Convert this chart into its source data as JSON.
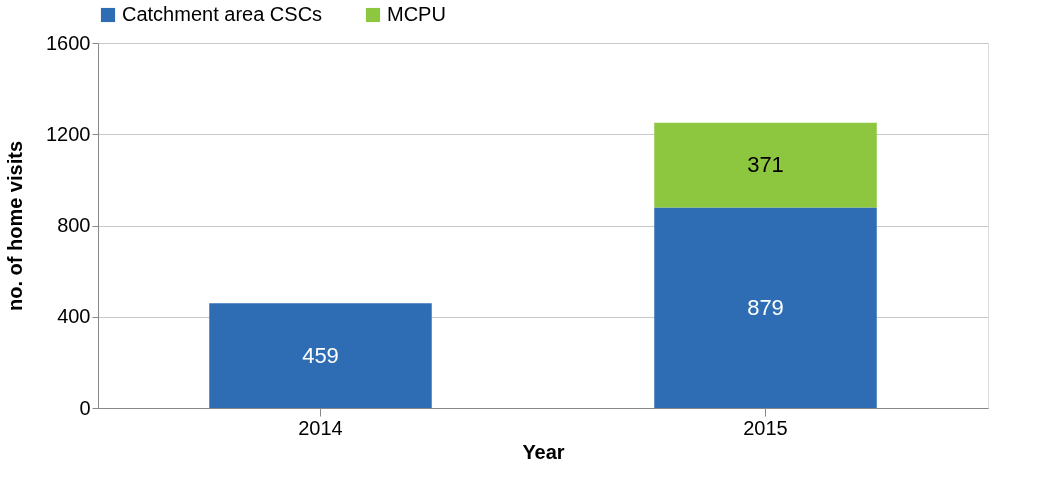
{
  "chart_data": {
    "type": "bar",
    "stacked": true,
    "xlabel": "Year",
    "ylabel": "no. of home visits",
    "categories": [
      "2014",
      "2015"
    ],
    "series": [
      {
        "name": "Catchment area CSCs",
        "color": "#2e6db4",
        "values": [
          459,
          879
        ]
      },
      {
        "name": "MCPU",
        "color": "#8dc63f",
        "values": [
          null,
          371
        ]
      }
    ],
    "ylim": [
      0,
      1600
    ],
    "yticks": [
      0,
      400,
      800,
      1200,
      1600
    ],
    "grid": "y",
    "legend": "top",
    "data_labels": true
  }
}
